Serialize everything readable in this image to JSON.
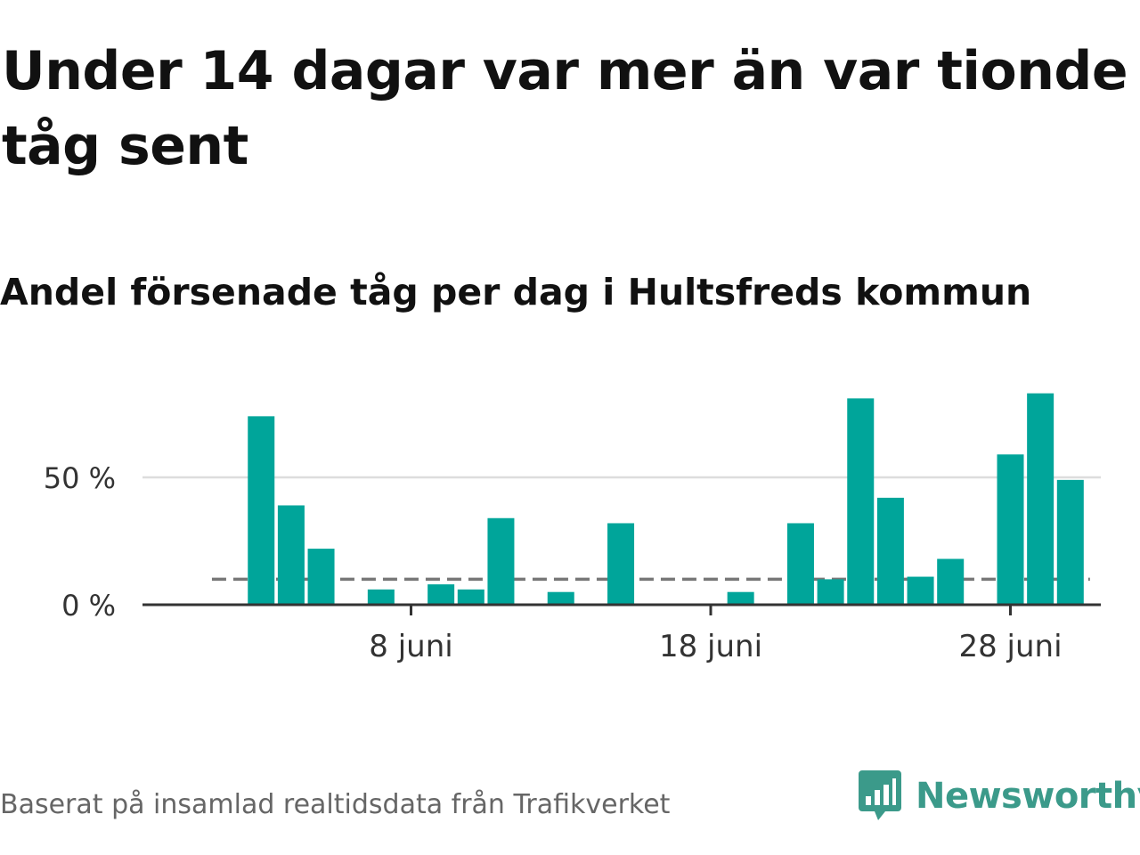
{
  "header": {
    "title": "Under 14 dagar var mer än var tionde tåg sent",
    "subtitle": "Andel försenade tåg per dag i Hultsfreds kommun"
  },
  "footer": {
    "source": "Baserat på insamlad realtidsdata från Trafikverket",
    "brand": "Newsworthy",
    "logo_icon": "bar-chart-speech-bubble-icon"
  },
  "colors": {
    "bar": "#00a59a",
    "reference_line": "#777777",
    "grid": "#dddddd",
    "axis": "#333333",
    "brand": "#3b9a8a"
  },
  "chart_data": {
    "type": "bar",
    "title": "Andel försenade tåg per dag i Hultsfreds kommun",
    "xlabel": "",
    "ylabel": "",
    "x_unit": "day of June",
    "x": [
      1,
      2,
      3,
      4,
      5,
      6,
      7,
      8,
      9,
      10,
      11,
      12,
      13,
      14,
      15,
      16,
      17,
      18,
      19,
      20,
      21,
      22,
      23,
      24,
      25,
      26,
      27,
      28,
      29,
      30
    ],
    "values": [
      null,
      null,
      74,
      39,
      22,
      null,
      6,
      null,
      8,
      6,
      34,
      null,
      5,
      null,
      32,
      null,
      null,
      null,
      5,
      null,
      32,
      10,
      81,
      42,
      11,
      18,
      null,
      59,
      83,
      49
    ],
    "x_ticks": [
      {
        "x": 8,
        "label": "8 juni"
      },
      {
        "x": 18,
        "label": "18 juni"
      },
      {
        "x": 28,
        "label": "28 juni"
      }
    ],
    "y_ticks": [
      {
        "y": 0,
        "label": "0 %"
      },
      {
        "y": 50,
        "label": "50 %"
      }
    ],
    "ylim": [
      0,
      90
    ],
    "reference_line": 10,
    "grid": true,
    "legend": "none"
  }
}
